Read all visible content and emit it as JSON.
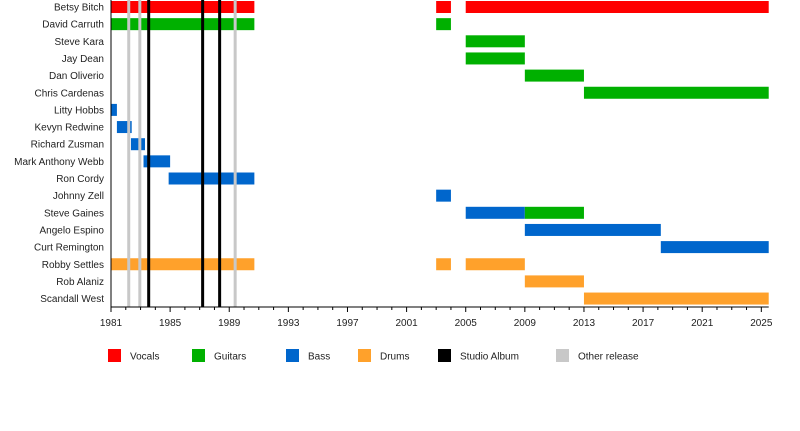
{
  "chart_data": {
    "type": "timeline",
    "xlim": [
      1981,
      2025.5
    ],
    "x_ticks": [
      1981,
      1985,
      1989,
      1993,
      1997,
      2001,
      2005,
      2009,
      2013,
      2017,
      2021,
      2025
    ],
    "colors": {
      "Vocals": "#ff0000",
      "Guitars": "#00b000",
      "Bass": "#0066cc",
      "Drums": "#ffa12b",
      "Studio Album": "#000000",
      "Other release": "#c8c8c8"
    },
    "legend": [
      "Vocals",
      "Guitars",
      "Bass",
      "Drums",
      "Studio Album",
      "Other release"
    ],
    "legend_placement": "bottom",
    "members": [
      {
        "name": "Betsy Bitch",
        "spans": [
          {
            "role": "Vocals",
            "from": 1981,
            "to": 1990.7
          },
          {
            "role": "Vocals",
            "from": 2003,
            "to": 2004
          },
          {
            "role": "Vocals",
            "from": 2005,
            "to": 2025.5
          }
        ]
      },
      {
        "name": "David Carruth",
        "spans": [
          {
            "role": "Guitars",
            "from": 1981,
            "to": 1990.7
          },
          {
            "role": "Guitars",
            "from": 2003,
            "to": 2004
          }
        ]
      },
      {
        "name": "Steve Kara",
        "spans": [
          {
            "role": "Guitars",
            "from": 2005,
            "to": 2009
          }
        ]
      },
      {
        "name": "Jay Dean",
        "spans": [
          {
            "role": "Guitars",
            "from": 2005,
            "to": 2009
          }
        ]
      },
      {
        "name": "Dan Oliverio",
        "spans": [
          {
            "role": "Guitars",
            "from": 2009,
            "to": 2013
          }
        ]
      },
      {
        "name": "Chris Cardenas",
        "spans": [
          {
            "role": "Guitars",
            "from": 2013,
            "to": 2025.5
          }
        ]
      },
      {
        "name": "Litty Hobbs",
        "spans": [
          {
            "role": "Bass",
            "from": 1981,
            "to": 1981.4
          }
        ]
      },
      {
        "name": "Kevyn Redwine",
        "spans": [
          {
            "role": "Bass",
            "from": 1981.4,
            "to": 1982.4
          }
        ]
      },
      {
        "name": "Richard Zusman",
        "spans": [
          {
            "role": "Bass",
            "from": 1982.35,
            "to": 1983.3
          }
        ]
      },
      {
        "name": "Mark Anthony Webb",
        "spans": [
          {
            "role": "Bass",
            "from": 1983.2,
            "to": 1985
          }
        ]
      },
      {
        "name": "Ron Cordy",
        "spans": [
          {
            "role": "Bass",
            "from": 1984.9,
            "to": 1990.7
          }
        ]
      },
      {
        "name": "Johnny Zell",
        "spans": [
          {
            "role": "Bass",
            "from": 2003,
            "to": 2004
          }
        ]
      },
      {
        "name": "Steve Gaines",
        "spans": [
          {
            "role": "Bass",
            "from": 2005,
            "to": 2009
          },
          {
            "role": "Guitars",
            "from": 2009,
            "to": 2013
          }
        ]
      },
      {
        "name": "Angelo Espino",
        "spans": [
          {
            "role": "Bass",
            "from": 2009,
            "to": 2018.2
          }
        ]
      },
      {
        "name": "Curt Remington",
        "spans": [
          {
            "role": "Bass",
            "from": 2018.2,
            "to": 2025.5
          }
        ]
      },
      {
        "name": "Robby Settles",
        "spans": [
          {
            "role": "Drums",
            "from": 1981,
            "to": 1990.7
          },
          {
            "role": "Drums",
            "from": 2003,
            "to": 2004
          },
          {
            "role": "Drums",
            "from": 2005,
            "to": 2009
          }
        ]
      },
      {
        "name": "Rob Alaniz",
        "spans": [
          {
            "role": "Drums",
            "from": 2009,
            "to": 2013
          }
        ]
      },
      {
        "name": "Scandall West",
        "spans": [
          {
            "role": "Drums",
            "from": 2013,
            "to": 2025.5
          }
        ]
      }
    ],
    "studio_albums": [
      1983.55,
      1987.2,
      1988.35
    ],
    "other_releases": [
      1982.2,
      1982.95,
      1989.4
    ]
  }
}
